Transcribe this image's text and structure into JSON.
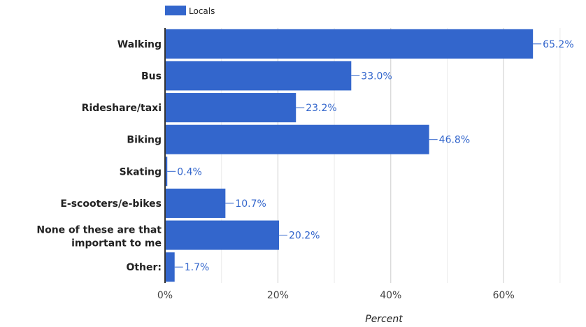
{
  "chart_data": {
    "type": "bar",
    "orientation": "horizontal",
    "categories": [
      "Walking",
      "Bus",
      "Rideshare/taxi",
      "Biking",
      "Skating",
      "E-scooters/e-bikes",
      "None of these are that important to me",
      "Other:"
    ],
    "series": [
      {
        "name": "Locals",
        "values": [
          65.2,
          33.0,
          23.2,
          46.8,
          0.4,
          10.7,
          20.2,
          1.7
        ],
        "labels": [
          "65.2%",
          "33.0%",
          "23.2%",
          "46.8%",
          "0.4%",
          "10.7%",
          "20.2%",
          "1.7%"
        ],
        "color": "#3366cc"
      }
    ],
    "xlabel": "Percent",
    "xlim": [
      0,
      70
    ],
    "xticks": [
      0,
      20,
      40,
      60
    ],
    "xtick_labels": [
      "0%",
      "20%",
      "40%",
      "60%"
    ],
    "grid": true,
    "legend": "top-left",
    "colors": {
      "bar": "#3366cc",
      "data_label": "#3366cc",
      "grid": "#cccccc",
      "minor_grid": "#ebebeb",
      "axis": "#333333"
    }
  }
}
